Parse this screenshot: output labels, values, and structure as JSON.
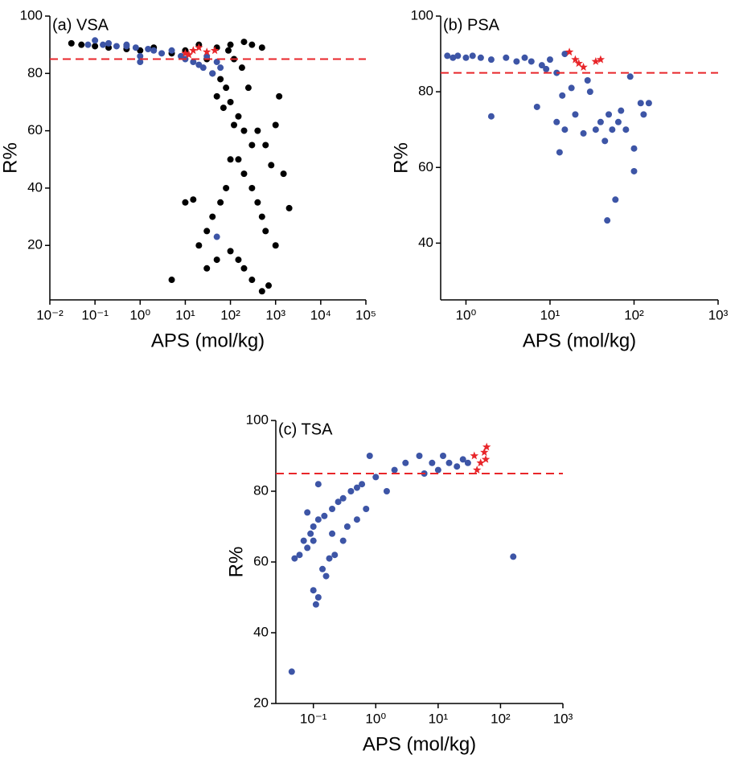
{
  "chart_data": [
    {
      "type": "scatter",
      "title": "(a) VSA",
      "xlabel": "APS (mol/kg)",
      "ylabel": "R%",
      "xscale": "log",
      "xlim": [
        0.01,
        100000
      ],
      "xticks": [
        {
          "value": 0.01,
          "label": "10⁻²"
        },
        {
          "value": 0.1,
          "label": "10⁻¹"
        },
        {
          "value": 1,
          "label": "10⁰"
        },
        {
          "value": 10,
          "label": "10¹"
        },
        {
          "value": 100,
          "label": "10²"
        },
        {
          "value": 1000,
          "label": "10³"
        },
        {
          "value": 10000,
          "label": "10⁴"
        },
        {
          "value": 100000,
          "label": "10⁵"
        }
      ],
      "ylim": [
        1,
        100
      ],
      "yticks": [
        20,
        40,
        60,
        80,
        100
      ],
      "hline": 85,
      "hline_color": "#e8262a",
      "series": [
        {
          "color": "#000000",
          "marker": "circle",
          "x": [
            0.03,
            0.05,
            0.1,
            0.2,
            0.5,
            1,
            2,
            5,
            10,
            20,
            50,
            100,
            200,
            300,
            500,
            30,
            40,
            60,
            80,
            100,
            150,
            200,
            300,
            50,
            70,
            120,
            150,
            200,
            300,
            400,
            500,
            600,
            100,
            80,
            60,
            40,
            30,
            20,
            15,
            10,
            5,
            700,
            500,
            300,
            200,
            1000,
            1500,
            2000,
            1000,
            800,
            150,
            100,
            1200,
            600,
            400,
            250,
            180,
            120,
            90,
            30,
            50
          ],
          "y": [
            90.5,
            90,
            89.5,
            89,
            88.5,
            88,
            89,
            87,
            88,
            90,
            89,
            90,
            91,
            90,
            89,
            85,
            80,
            78,
            75,
            70,
            65,
            60,
            55,
            72,
            68,
            62,
            50,
            45,
            40,
            35,
            30,
            25,
            50,
            40,
            35,
            30,
            25,
            20,
            36,
            35,
            8,
            6,
            4,
            8,
            12,
            62,
            45,
            33,
            20,
            48,
            15,
            18,
            72,
            55,
            60,
            75,
            82,
            85,
            88,
            12,
            15
          ]
        },
        {
          "color": "#3d55a6",
          "marker": "circle",
          "x": [
            0.07,
            0.1,
            0.15,
            0.2,
            0.3,
            0.5,
            0.8,
            1,
            1.5,
            2,
            3,
            5,
            8,
            10,
            15,
            20,
            25,
            30,
            40,
            50,
            60,
            0.5,
            1,
            50
          ],
          "y": [
            90,
            91.5,
            90,
            90.5,
            89.5,
            90,
            89,
            86,
            88.5,
            88,
            87,
            88,
            86,
            85,
            84,
            83,
            82,
            86,
            80,
            84,
            82,
            89.5,
            84,
            23
          ]
        },
        {
          "color": "#e8262a",
          "marker": "star",
          "x": [
            10,
            12,
            15,
            20,
            30,
            45
          ],
          "y": [
            87,
            86.5,
            88,
            89,
            87.5,
            88
          ]
        }
      ]
    },
    {
      "type": "scatter",
      "title": "(b) PSA",
      "xlabel": "APS (mol/kg)",
      "ylabel": "R%",
      "xscale": "log",
      "xlim": [
        0.5,
        1000
      ],
      "xticks": [
        {
          "value": 1,
          "label": "10⁰"
        },
        {
          "value": 10,
          "label": "10¹"
        },
        {
          "value": 100,
          "label": "10²"
        },
        {
          "value": 1000,
          "label": "10³"
        }
      ],
      "ylim": [
        25,
        100
      ],
      "yticks": [
        40,
        60,
        80,
        100
      ],
      "hline": 85,
      "hline_color": "#e8262a",
      "series": [
        {
          "color": "#3d55a6",
          "marker": "circle",
          "x": [
            0.6,
            0.7,
            0.8,
            1,
            1.2,
            1.5,
            2,
            2,
            3,
            4,
            5,
            6,
            7,
            8,
            9,
            10,
            12,
            13,
            14,
            15,
            18,
            20,
            25,
            28,
            30,
            35,
            40,
            45,
            48,
            50,
            55,
            60,
            65,
            70,
            80,
            90,
            100,
            100,
            120,
            150,
            130,
            12,
            15
          ],
          "y": [
            89.5,
            89,
            89.5,
            89,
            89.5,
            89,
            88.5,
            73.5,
            89,
            88,
            89,
            88,
            76,
            87,
            86,
            88.5,
            72,
            64,
            79,
            70,
            81,
            74,
            69,
            83,
            80,
            70,
            72,
            67,
            46,
            74,
            70,
            51.5,
            72,
            75,
            70,
            84,
            65,
            59,
            77,
            77,
            74,
            85,
            90
          ]
        },
        {
          "color": "#e8262a",
          "marker": "star",
          "x": [
            17,
            20,
            22,
            25,
            35,
            40
          ],
          "y": [
            90.5,
            88.5,
            87.5,
            86.5,
            88,
            88.5
          ]
        }
      ]
    },
    {
      "type": "scatter",
      "title": "(c) TSA",
      "xlabel": "APS (mol/kg)",
      "ylabel": "R%",
      "xscale": "log",
      "xlim": [
        0.025,
        1000
      ],
      "xticks": [
        {
          "value": 0.1,
          "label": "10⁻¹"
        },
        {
          "value": 1,
          "label": "10⁰"
        },
        {
          "value": 10,
          "label": "10¹"
        },
        {
          "value": 100,
          "label": "10²"
        },
        {
          "value": 1000,
          "label": "10³"
        }
      ],
      "ylim": [
        20,
        100
      ],
      "yticks": [
        20,
        40,
        60,
        80,
        100
      ],
      "hline": 85,
      "hline_color": "#e8262a",
      "series": [
        {
          "color": "#3d55a6",
          "marker": "circle",
          "x": [
            0.045,
            0.05,
            0.06,
            0.07,
            0.08,
            0.09,
            0.1,
            0.1,
            0.11,
            0.12,
            0.12,
            0.14,
            0.15,
            0.16,
            0.18,
            0.2,
            0.22,
            0.25,
            0.3,
            0.3,
            0.35,
            0.4,
            0.5,
            0.5,
            0.6,
            0.7,
            0.8,
            1,
            1.5,
            2,
            3,
            5,
            6,
            8,
            10,
            12,
            15,
            20,
            25,
            30,
            160,
            0.12,
            0.1,
            0.2,
            0.08
          ],
          "y": [
            29,
            61,
            62,
            66,
            64,
            68,
            70,
            52,
            48,
            50,
            72,
            58,
            73,
            56,
            61,
            75,
            62,
            77,
            78,
            66,
            70,
            80,
            81,
            72,
            82,
            75,
            90,
            84,
            80,
            86,
            88,
            90,
            85,
            88,
            86,
            90,
            88,
            87,
            89,
            88,
            61.5,
            82,
            66,
            68,
            74
          ]
        },
        {
          "color": "#e8262a",
          "marker": "star",
          "x": [
            38,
            42,
            48,
            55,
            58,
            60
          ],
          "y": [
            90,
            86,
            88,
            91,
            89,
            92.5
          ]
        }
      ]
    }
  ]
}
